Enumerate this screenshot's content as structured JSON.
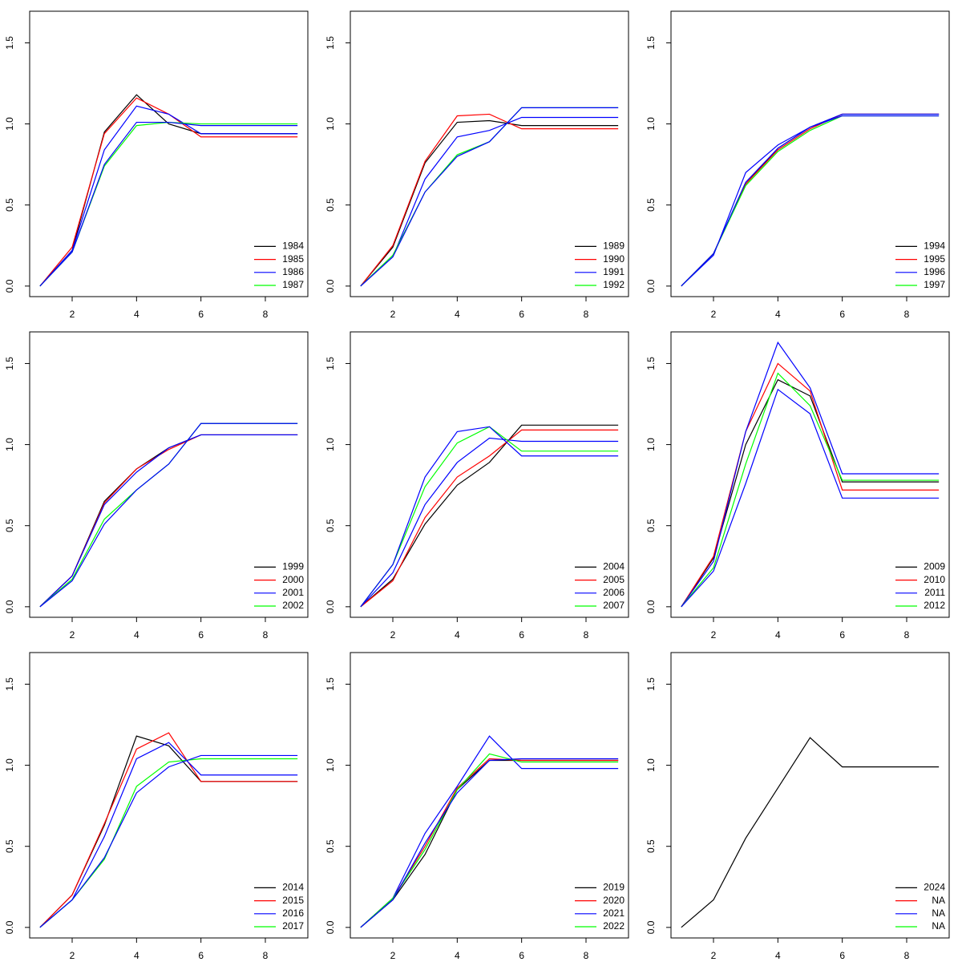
{
  "chart_data": [
    {
      "type": "line",
      "x": [
        1,
        2,
        3,
        4,
        5,
        6,
        7,
        8,
        9
      ],
      "xlim": [
        0.68,
        9.32
      ],
      "ylim": [
        -0.065,
        1.695
      ],
      "xticks": [
        2,
        4,
        6,
        8
      ],
      "yticks": [
        {
          "value": 0,
          "label": "0.0"
        },
        {
          "value": 0.5,
          "label": "0.5"
        },
        {
          "value": 1,
          "label": "1.0"
        },
        {
          "value": 1.5,
          "label": "1.5"
        }
      ],
      "legend": "bottomright",
      "series": [
        {
          "name": "1984",
          "color": "#000000",
          "values": [
            0,
            0.22,
            0.95,
            1.18,
            1.0,
            0.94,
            0.94,
            0.94,
            0.94
          ]
        },
        {
          "name": "1985",
          "color": "#ff0000",
          "values": [
            0,
            0.24,
            0.94,
            1.16,
            1.06,
            0.92,
            0.92,
            0.92,
            0.92
          ]
        },
        {
          "name": "1986",
          "color": "#0000ff",
          "values": [
            0,
            0.22,
            0.84,
            1.11,
            1.06,
            0.94,
            0.94,
            0.94,
            0.94
          ]
        },
        {
          "name": "1987",
          "color": "#00ff00",
          "values": [
            0,
            0.21,
            0.74,
            0.99,
            1.01,
            1.0,
            1.0,
            1.0,
            1.0
          ]
        },
        {
          "name": null,
          "color": "#0000ff",
          "values": [
            0,
            0.21,
            0.75,
            1.01,
            1.01,
            0.99,
            0.99,
            0.99,
            0.99
          ]
        }
      ]
    },
    {
      "type": "line",
      "x": [
        1,
        2,
        3,
        4,
        5,
        6,
        7,
        8,
        9
      ],
      "xlim": [
        0.68,
        9.32
      ],
      "ylim": [
        -0.065,
        1.695
      ],
      "xticks": [
        2,
        4,
        6,
        8
      ],
      "yticks": [
        {
          "value": 0,
          "label": "0.0"
        },
        {
          "value": 0.5,
          "label": "0.5"
        },
        {
          "value": 1,
          "label": "1.0"
        },
        {
          "value": 1.5,
          "label": "1.5"
        }
      ],
      "legend": "bottomright",
      "series": [
        {
          "name": "1989",
          "color": "#000000",
          "values": [
            0,
            0.24,
            0.76,
            1.01,
            1.02,
            0.99,
            0.99,
            0.99,
            0.99
          ]
        },
        {
          "name": "1990",
          "color": "#ff0000",
          "values": [
            0,
            0.25,
            0.77,
            1.05,
            1.06,
            0.97,
            0.97,
            0.97,
            0.97
          ]
        },
        {
          "name": "1991",
          "color": "#0000ff",
          "values": [
            0,
            0.18,
            0.66,
            0.92,
            0.96,
            1.04,
            1.04,
            1.04,
            1.04
          ]
        },
        {
          "name": "1992",
          "color": "#00ff00",
          "values": [
            0,
            0.19,
            0.58,
            0.81,
            0.89,
            1.1,
            1.1,
            1.1,
            1.1
          ]
        },
        {
          "name": null,
          "color": "#0000ff",
          "values": [
            0,
            0.18,
            0.58,
            0.8,
            0.89,
            1.1,
            1.1,
            1.1,
            1.1
          ]
        }
      ]
    },
    {
      "type": "line",
      "x": [
        1,
        2,
        3,
        4,
        5,
        6,
        7,
        8,
        9
      ],
      "xlim": [
        0.68,
        9.32
      ],
      "ylim": [
        -0.065,
        1.695
      ],
      "xticks": [
        2,
        4,
        6,
        8
      ],
      "yticks": [
        {
          "value": 0,
          "label": "0.0"
        },
        {
          "value": 0.5,
          "label": "0.5"
        },
        {
          "value": 1,
          "label": "1.0"
        },
        {
          "value": 1.5,
          "label": "1.5"
        }
      ],
      "legend": "bottomright",
      "series": [
        {
          "name": "1994",
          "color": "#000000",
          "values": [
            0,
            0.2,
            0.63,
            0.85,
            0.98,
            1.06,
            1.06,
            1.06,
            1.06
          ]
        },
        {
          "name": "1995",
          "color": "#ff0000",
          "values": [
            0,
            0.2,
            0.63,
            0.84,
            0.97,
            1.06,
            1.06,
            1.06,
            1.06
          ]
        },
        {
          "name": "1996",
          "color": "#0000ff",
          "values": [
            0,
            0.19,
            0.7,
            0.87,
            0.98,
            1.06,
            1.06,
            1.06,
            1.06
          ]
        },
        {
          "name": "1997",
          "color": "#00ff00",
          "values": [
            0,
            0.2,
            0.62,
            0.83,
            0.96,
            1.05,
            1.05,
            1.05,
            1.05
          ]
        },
        {
          "name": null,
          "color": "#0000ff",
          "values": [
            0,
            0.2,
            0.64,
            0.85,
            0.98,
            1.05,
            1.05,
            1.05,
            1.05
          ]
        }
      ]
    },
    {
      "type": "line",
      "x": [
        1,
        2,
        3,
        4,
        5,
        6,
        7,
        8,
        9
      ],
      "xlim": [
        0.68,
        9.32
      ],
      "ylim": [
        -0.065,
        1.695
      ],
      "xticks": [
        2,
        4,
        6,
        8
      ],
      "yticks": [
        {
          "value": 0,
          "label": "0.0"
        },
        {
          "value": 0.5,
          "label": "0.5"
        },
        {
          "value": 1,
          "label": "1.0"
        },
        {
          "value": 1.5,
          "label": "1.5"
        }
      ],
      "legend": "bottomright",
      "series": [
        {
          "name": "1999",
          "color": "#000000",
          "values": [
            0,
            0.19,
            0.65,
            0.85,
            0.98,
            1.06,
            1.06,
            1.06,
            1.06
          ]
        },
        {
          "name": "2000",
          "color": "#ff0000",
          "values": [
            0,
            0.19,
            0.64,
            0.85,
            0.97,
            1.06,
            1.06,
            1.06,
            1.06
          ]
        },
        {
          "name": "2001",
          "color": "#0000ff",
          "values": [
            0,
            0.19,
            0.63,
            0.83,
            0.98,
            1.06,
            1.06,
            1.06,
            1.06
          ]
        },
        {
          "name": "2002",
          "color": "#00ff00",
          "values": [
            0,
            0.17,
            0.54,
            0.72,
            0.88,
            1.13,
            1.13,
            1.13,
            1.13
          ]
        },
        {
          "name": null,
          "color": "#0000ff",
          "values": [
            0,
            0.16,
            0.51,
            0.72,
            0.88,
            1.13,
            1.13,
            1.13,
            1.13
          ]
        }
      ]
    },
    {
      "type": "line",
      "x": [
        1,
        2,
        3,
        4,
        5,
        6,
        7,
        8,
        9
      ],
      "xlim": [
        0.68,
        9.32
      ],
      "ylim": [
        -0.065,
        1.695
      ],
      "xticks": [
        2,
        4,
        6,
        8
      ],
      "yticks": [
        {
          "value": 0,
          "label": "0.0"
        },
        {
          "value": 0.5,
          "label": "0.5"
        },
        {
          "value": 1,
          "label": "1.0"
        },
        {
          "value": 1.5,
          "label": "1.5"
        }
      ],
      "legend": "bottomright",
      "series": [
        {
          "name": "2004",
          "color": "#000000",
          "values": [
            0,
            0.17,
            0.51,
            0.75,
            0.89,
            1.12,
            1.12,
            1.12,
            1.12
          ]
        },
        {
          "name": "2005",
          "color": "#ff0000",
          "values": [
            0,
            0.16,
            0.55,
            0.8,
            0.93,
            1.09,
            1.09,
            1.09,
            1.09
          ]
        },
        {
          "name": "2006",
          "color": "#0000ff",
          "values": [
            0,
            0.21,
            0.63,
            0.89,
            1.04,
            1.02,
            1.02,
            1.02,
            1.02
          ]
        },
        {
          "name": "2007",
          "color": "#00ff00",
          "values": [
            0,
            0.26,
            0.74,
            1.01,
            1.11,
            0.96,
            0.96,
            0.96,
            0.96
          ]
        },
        {
          "name": null,
          "color": "#0000ff",
          "values": [
            0,
            0.26,
            0.8,
            1.08,
            1.11,
            0.93,
            0.93,
            0.93,
            0.93
          ]
        }
      ]
    },
    {
      "type": "line",
      "x": [
        1,
        2,
        3,
        4,
        5,
        6,
        7,
        8,
        9
      ],
      "xlim": [
        0.68,
        9.32
      ],
      "ylim": [
        -0.065,
        1.695
      ],
      "xticks": [
        2,
        4,
        6,
        8
      ],
      "yticks": [
        {
          "value": 0,
          "label": "0.0"
        },
        {
          "value": 0.5,
          "label": "0.5"
        },
        {
          "value": 1,
          "label": "1.0"
        },
        {
          "value": 1.5,
          "label": "1.5"
        }
      ],
      "legend": "bottomright",
      "series": [
        {
          "name": "2009",
          "color": "#000000",
          "values": [
            0,
            0.3,
            1.0,
            1.4,
            1.3,
            0.77,
            0.77,
            0.77,
            0.77
          ]
        },
        {
          "name": "2010",
          "color": "#ff0000",
          "values": [
            0,
            0.31,
            1.08,
            1.5,
            1.33,
            0.72,
            0.72,
            0.72,
            0.72
          ]
        },
        {
          "name": "2011",
          "color": "#0000ff",
          "values": [
            0,
            0.28,
            1.08,
            1.63,
            1.35,
            0.82,
            0.82,
            0.82,
            0.82
          ]
        },
        {
          "name": "2012",
          "color": "#00ff00",
          "values": [
            0,
            0.24,
            0.88,
            1.44,
            1.24,
            0.78,
            0.78,
            0.78,
            0.78
          ]
        },
        {
          "name": null,
          "color": "#0000ff",
          "values": [
            0,
            0.22,
            0.76,
            1.34,
            1.19,
            0.67,
            0.67,
            0.67,
            0.67
          ]
        }
      ]
    },
    {
      "type": "line",
      "x": [
        1,
        2,
        3,
        4,
        5,
        6,
        7,
        8,
        9
      ],
      "xlim": [
        0.68,
        9.32
      ],
      "ylim": [
        -0.065,
        1.695
      ],
      "xticks": [
        2,
        4,
        6,
        8
      ],
      "yticks": [
        {
          "value": 0,
          "label": "0.0"
        },
        {
          "value": 0.5,
          "label": "0.5"
        },
        {
          "value": 1,
          "label": "1.0"
        },
        {
          "value": 1.5,
          "label": "1.5"
        }
      ],
      "legend": "bottomright",
      "series": [
        {
          "name": "2014",
          "color": "#000000",
          "values": [
            0,
            0.2,
            0.63,
            1.18,
            1.12,
            0.9,
            0.9,
            0.9,
            0.9
          ]
        },
        {
          "name": "2015",
          "color": "#ff0000",
          "values": [
            0,
            0.2,
            0.64,
            1.1,
            1.2,
            0.9,
            0.9,
            0.9,
            0.9
          ]
        },
        {
          "name": "2016",
          "color": "#0000ff",
          "values": [
            0,
            0.17,
            0.56,
            1.04,
            1.14,
            0.94,
            0.94,
            0.94,
            0.94
          ]
        },
        {
          "name": "2017",
          "color": "#00ff00",
          "values": [
            0,
            0.17,
            0.42,
            0.87,
            1.02,
            1.04,
            1.04,
            1.04,
            1.04
          ]
        },
        {
          "name": null,
          "color": "#0000ff",
          "values": [
            0,
            0.17,
            0.43,
            0.83,
            0.99,
            1.06,
            1.06,
            1.06,
            1.06
          ]
        }
      ]
    },
    {
      "type": "line",
      "x": [
        1,
        2,
        3,
        4,
        5,
        6,
        7,
        8,
        9
      ],
      "xlim": [
        0.68,
        9.32
      ],
      "ylim": [
        -0.065,
        1.695
      ],
      "xticks": [
        2,
        4,
        6,
        8
      ],
      "yticks": [
        {
          "value": 0,
          "label": "0.0"
        },
        {
          "value": 0.5,
          "label": "0.5"
        },
        {
          "value": 1,
          "label": "1.0"
        },
        {
          "value": 1.5,
          "label": "1.5"
        }
      ],
      "legend": "bottomright",
      "series": [
        {
          "name": "2019",
          "color": "#000000",
          "values": [
            0,
            0.17,
            0.45,
            0.85,
            1.03,
            1.03,
            1.03,
            1.03,
            1.03
          ]
        },
        {
          "name": "2020",
          "color": "#ff0000",
          "values": [
            0,
            0.18,
            0.5,
            0.86,
            1.04,
            1.03,
            1.03,
            1.03,
            1.03
          ]
        },
        {
          "name": "2021",
          "color": "#0000ff",
          "values": [
            0,
            0.18,
            0.58,
            0.87,
            1.18,
            0.98,
            0.98,
            0.98,
            0.98
          ]
        },
        {
          "name": "2022",
          "color": "#00ff00",
          "values": [
            0,
            0.18,
            0.48,
            0.85,
            1.07,
            1.02,
            1.02,
            1.02,
            1.02
          ]
        },
        {
          "name": null,
          "color": "#0000ff",
          "values": [
            0,
            0.17,
            0.52,
            0.83,
            1.03,
            1.04,
            1.04,
            1.04,
            1.04
          ]
        }
      ]
    },
    {
      "type": "line",
      "x": [
        1,
        2,
        3,
        4,
        5,
        6,
        7,
        8,
        9
      ],
      "xlim": [
        0.68,
        9.32
      ],
      "ylim": [
        -0.065,
        1.695
      ],
      "xticks": [
        2,
        4,
        6,
        8
      ],
      "yticks": [
        {
          "value": 0,
          "label": "0.0"
        },
        {
          "value": 0.5,
          "label": "0.5"
        },
        {
          "value": 1,
          "label": "1.0"
        },
        {
          "value": 1.5,
          "label": "1.5"
        }
      ],
      "legend": "bottomright",
      "series": [
        {
          "name": "2024",
          "color": "#000000",
          "values": [
            0,
            0.17,
            0.55,
            0.86,
            1.17,
            0.99,
            0.99,
            0.99,
            0.99
          ]
        },
        {
          "name": "NA",
          "color": "#ff0000",
          "values": [
            null,
            null,
            null,
            null,
            null,
            null,
            null,
            null,
            null
          ]
        },
        {
          "name": "NA",
          "color": "#0000ff",
          "values": [
            null,
            null,
            null,
            null,
            null,
            null,
            null,
            null,
            null
          ]
        },
        {
          "name": "NA",
          "color": "#00ff00",
          "values": [
            null,
            null,
            null,
            null,
            null,
            null,
            null,
            null,
            null
          ]
        }
      ]
    }
  ]
}
